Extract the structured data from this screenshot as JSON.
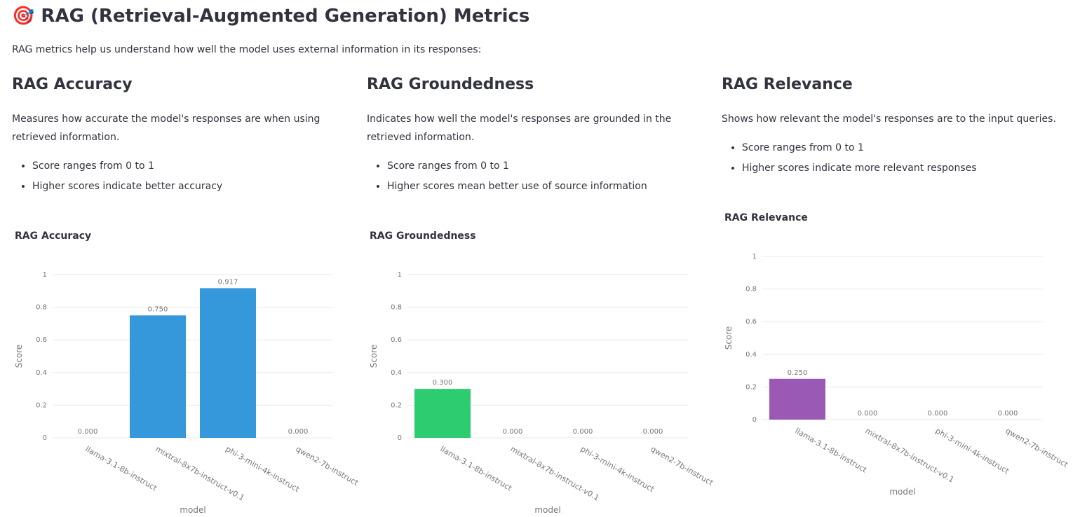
{
  "header": {
    "title": "🎯 RAG (Retrieval-Augmented Generation) Metrics",
    "intro": "RAG metrics help us understand how well the model uses external information in its responses:"
  },
  "sections": [
    {
      "heading": "RAG Accuracy",
      "description": "Measures how accurate the model's responses are when using retrieved information.",
      "bullets": [
        "Score ranges from 0 to 1",
        "Higher scores indicate better accuracy"
      ]
    },
    {
      "heading": "RAG Groundedness",
      "description": "Indicates how well the model's responses are grounded in the retrieved information.",
      "bullets": [
        "Score ranges from 0 to 1",
        "Higher scores mean better use of source information"
      ]
    },
    {
      "heading": "RAG Relevance",
      "description": "Shows how relevant the model's responses are to the input queries.",
      "bullets": [
        "Score ranges from 0 to 1",
        "Higher scores indicate more relevant responses"
      ]
    }
  ],
  "chart_data": [
    {
      "type": "bar",
      "title": "RAG Accuracy",
      "categories": [
        "llama-3.1-8b-instruct",
        "mixtral-8x7b-instruct-v0.1",
        "phi-3-mini-4k-instruct",
        "qwen2-7b-instruct"
      ],
      "values": [
        0,
        0.75,
        0.917,
        0
      ],
      "value_labels": [
        "0.000",
        "0.750",
        "0.917",
        "0.000"
      ],
      "color": "#3498db",
      "xlabel": "model",
      "ylabel": "Score",
      "ylim": [
        0,
        1
      ],
      "yticks": [
        0,
        0.2,
        0.4,
        0.6,
        0.8,
        1
      ],
      "grid": true
    },
    {
      "type": "bar",
      "title": "RAG Groundedness",
      "categories": [
        "llama-3.1-8b-instruct",
        "mixtral-8x7b-instruct-v0.1",
        "phi-3-mini-4k-instruct",
        "qwen2-7b-instruct"
      ],
      "values": [
        0.3,
        0,
        0,
        0
      ],
      "value_labels": [
        "0.300",
        "0.000",
        "0.000",
        "0.000"
      ],
      "color": "#2ecc71",
      "xlabel": "model",
      "ylabel": "Score",
      "ylim": [
        0,
        1
      ],
      "yticks": [
        0,
        0.2,
        0.4,
        0.6,
        0.8,
        1
      ],
      "grid": true
    },
    {
      "type": "bar",
      "title": "RAG Relevance",
      "categories": [
        "llama-3.1-8b-instruct",
        "mixtral-8x7b-instruct-v0.1",
        "phi-3-mini-4k-instruct",
        "qwen2-7b-instruct"
      ],
      "values": [
        0.25,
        0,
        0,
        0
      ],
      "value_labels": [
        "0.250",
        "0.000",
        "0.000",
        "0.000"
      ],
      "color": "#9b59b6",
      "xlabel": "model",
      "ylabel": "Score",
      "ylim": [
        0,
        1
      ],
      "yticks": [
        0,
        0.2,
        0.4,
        0.6,
        0.8,
        1
      ],
      "grid": true
    }
  ]
}
